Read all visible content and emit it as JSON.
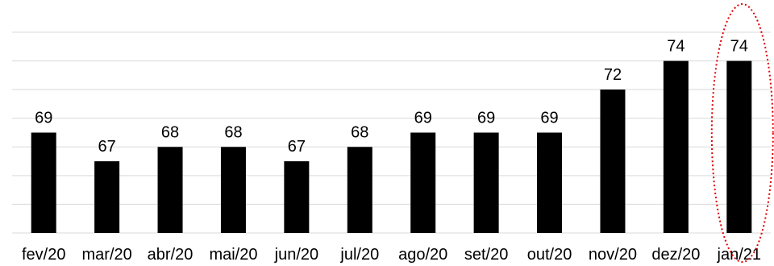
{
  "chart_data": {
    "type": "bar",
    "categories": [
      "fev/20",
      "mar/20",
      "abr/20",
      "mai/20",
      "jun/20",
      "jul/20",
      "ago/20",
      "set/20",
      "out/20",
      "nov/20",
      "dez/20",
      "jan/21"
    ],
    "values": [
      69,
      67,
      68,
      68,
      67,
      68,
      69,
      69,
      69,
      72,
      74,
      74
    ],
    "ylim": [
      62,
      76
    ],
    "grid": true,
    "data_labels": true,
    "bar_color": "#000000",
    "highlight": {
      "category": "jan/21",
      "shape": "dotted-ellipse",
      "color": "#e00000"
    }
  }
}
